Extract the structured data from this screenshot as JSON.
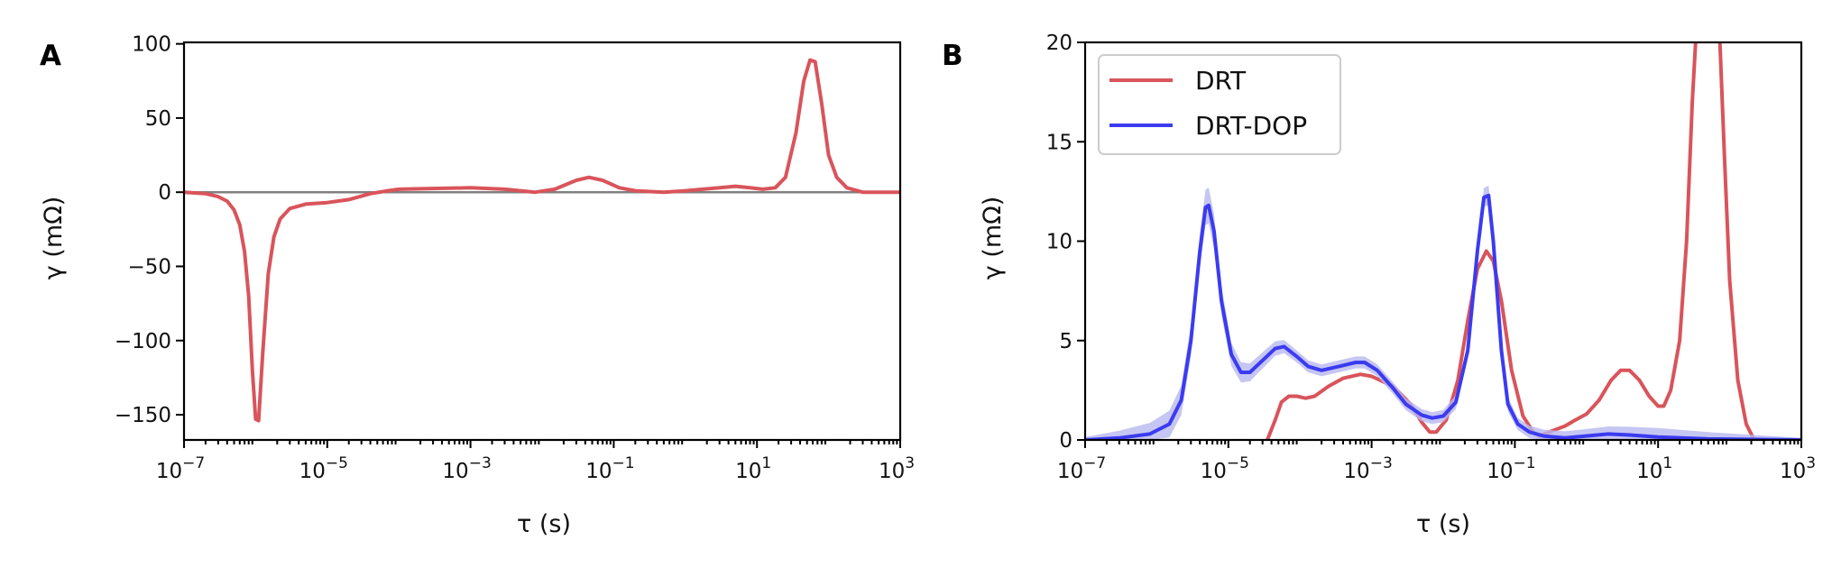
{
  "chart_data": [
    {
      "panel": "A",
      "type": "line",
      "xlabel": "τ (s)",
      "ylabel": "γ (mΩ)",
      "xscale": "log",
      "xlim": [
        1e-07,
        1000
      ],
      "ylim": [
        -167,
        101
      ],
      "xticks": [
        {
          "value": 1e-07,
          "base": "10",
          "exp": "−7"
        },
        {
          "value": 1e-05,
          "base": "10",
          "exp": "−5"
        },
        {
          "value": 0.001,
          "base": "10",
          "exp": "−3"
        },
        {
          "value": 0.1,
          "base": "10",
          "exp": "−1"
        },
        {
          "value": 10,
          "base": "10",
          "exp": "1"
        },
        {
          "value": 1000,
          "base": "10",
          "exp": "3"
        }
      ],
      "yticks": [
        {
          "value": 100,
          "label": "100"
        },
        {
          "value": 50,
          "label": "50"
        },
        {
          "value": 0,
          "label": "0"
        },
        {
          "value": -50,
          "label": "−50"
        },
        {
          "value": -100,
          "label": "−100"
        },
        {
          "value": -150,
          "label": "−150"
        }
      ],
      "reference_line": {
        "y": 0,
        "color": "#808080"
      },
      "series": [
        {
          "color": "#d9545b",
          "points": [
            [
              1e-07,
              0
            ],
            [
              2e-07,
              -1
            ],
            [
              3e-07,
              -3
            ],
            [
              4e-07,
              -6
            ],
            [
              5e-07,
              -12
            ],
            [
              6e-07,
              -22
            ],
            [
              7e-07,
              -40
            ],
            [
              8e-07,
              -70
            ],
            [
              9e-07,
              -120
            ],
            [
              1e-06,
              -153
            ],
            [
              1.1e-06,
              -154
            ],
            [
              1.25e-06,
              -110
            ],
            [
              1.5e-06,
              -55
            ],
            [
              1.8e-06,
              -30
            ],
            [
              2.2e-06,
              -18
            ],
            [
              3e-06,
              -11
            ],
            [
              5e-06,
              -8
            ],
            [
              1e-05,
              -7
            ],
            [
              2e-05,
              -5
            ],
            [
              4e-05,
              -1
            ],
            [
              7e-05,
              1
            ],
            [
              0.0001,
              2
            ],
            [
              0.001,
              3
            ],
            [
              0.003,
              2
            ],
            [
              0.008,
              0
            ],
            [
              0.015,
              2
            ],
            [
              0.03,
              8
            ],
            [
              0.045,
              10
            ],
            [
              0.07,
              8
            ],
            [
              0.12,
              3
            ],
            [
              0.2,
              1
            ],
            [
              0.5,
              0
            ],
            [
              1,
              1
            ],
            [
              3,
              3
            ],
            [
              5,
              4
            ],
            [
              8,
              3
            ],
            [
              12,
              2
            ],
            [
              18,
              3
            ],
            [
              25,
              10
            ],
            [
              35,
              40
            ],
            [
              45,
              75
            ],
            [
              55,
              89
            ],
            [
              65,
              88
            ],
            [
              80,
              60
            ],
            [
              100,
              25
            ],
            [
              130,
              10
            ],
            [
              180,
              3
            ],
            [
              300,
              0
            ],
            [
              1000,
              0
            ]
          ]
        }
      ]
    },
    {
      "panel": "B",
      "type": "line",
      "xlabel": "τ (s)",
      "ylabel": "γ (mΩ)",
      "xscale": "log",
      "xlim": [
        1e-07,
        1000
      ],
      "ylim": [
        0,
        20
      ],
      "xticks": [
        {
          "value": 1e-07,
          "base": "10",
          "exp": "−7"
        },
        {
          "value": 1e-05,
          "base": "10",
          "exp": "−5"
        },
        {
          "value": 0.001,
          "base": "10",
          "exp": "−3"
        },
        {
          "value": 0.1,
          "base": "10",
          "exp": "−1"
        },
        {
          "value": 10,
          "base": "10",
          "exp": "1"
        },
        {
          "value": 1000,
          "base": "10",
          "exp": "3"
        }
      ],
      "yticks": [
        {
          "value": 0,
          "label": "0"
        },
        {
          "value": 5,
          "label": "5"
        },
        {
          "value": 10,
          "label": "10"
        },
        {
          "value": 15,
          "label": "15"
        },
        {
          "value": 20,
          "label": "20"
        }
      ],
      "legend": {
        "position": "top-left"
      },
      "series": [
        {
          "name": "DRT",
          "color": "#d9545b",
          "points": [
            [
              3.5e-05,
              0
            ],
            [
              4.5e-05,
              1
            ],
            [
              5.5e-05,
              1.9
            ],
            [
              7e-05,
              2.2
            ],
            [
              9e-05,
              2.2
            ],
            [
              0.00012,
              2.1
            ],
            [
              0.00016,
              2.2
            ],
            [
              0.00025,
              2.7
            ],
            [
              0.0004,
              3.1
            ],
            [
              0.0007,
              3.3
            ],
            [
              0.001,
              3.2
            ],
            [
              0.002,
              2.7
            ],
            [
              0.0035,
              1.8
            ],
            [
              0.005,
              0.9
            ],
            [
              0.0065,
              0.4
            ],
            [
              0.008,
              0.4
            ],
            [
              0.011,
              1
            ],
            [
              0.016,
              3
            ],
            [
              0.022,
              6
            ],
            [
              0.03,
              8.6
            ],
            [
              0.04,
              9.5
            ],
            [
              0.05,
              9
            ],
            [
              0.065,
              7
            ],
            [
              0.09,
              3.5
            ],
            [
              0.13,
              1.2
            ],
            [
              0.18,
              0.4
            ],
            [
              0.22,
              0.2
            ],
            [
              0.3,
              0.4
            ],
            [
              0.5,
              0.7
            ],
            [
              0.7,
              1
            ],
            [
              1,
              1.3
            ],
            [
              1.5,
              2
            ],
            [
              2.2,
              3
            ],
            [
              3,
              3.5
            ],
            [
              4,
              3.5
            ],
            [
              5.5,
              3
            ],
            [
              7.5,
              2.2
            ],
            [
              10,
              1.7
            ],
            [
              12,
              1.7
            ],
            [
              15,
              2.5
            ],
            [
              20,
              5
            ],
            [
              25,
              10
            ],
            [
              30,
              17
            ],
            [
              34,
              20.5
            ]
          ],
          "points_2": [
            [
              72,
              20.5
            ],
            [
              85,
              14
            ],
            [
              100,
              8
            ],
            [
              130,
              3
            ],
            [
              170,
              0.8
            ],
            [
              220,
              0
            ]
          ]
        },
        {
          "name": "DRT-DOP",
          "color": "#3b3bf0",
          "band_color": "#b8b8f0",
          "band_spread": [
            [
              1e-07,
              0.15
            ],
            [
              1e-06,
              0.6
            ],
            [
              3e-06,
              0.8
            ],
            [
              4.5e-06,
              0.9
            ],
            [
              6e-06,
              0.9
            ],
            [
              1e-05,
              0.6
            ],
            [
              2e-05,
              0.45
            ],
            [
              8e-05,
              0.3
            ],
            [
              0.001,
              0.3
            ],
            [
              0.01,
              0.3
            ],
            [
              0.045,
              0.5
            ],
            [
              0.1,
              0.3
            ],
            [
              1,
              0.35
            ],
            [
              10,
              0.45
            ],
            [
              100,
              0.3
            ],
            [
              1000,
              0.1
            ]
          ],
          "points": [
            [
              1e-07,
              0
            ],
            [
              3e-07,
              0.1
            ],
            [
              8e-07,
              0.3
            ],
            [
              1.5e-06,
              0.8
            ],
            [
              2.2e-06,
              2
            ],
            [
              3e-06,
              5
            ],
            [
              4e-06,
              9.5
            ],
            [
              4.8e-06,
              11.7
            ],
            [
              5.3e-06,
              11.8
            ],
            [
              6.3e-06,
              10.5
            ],
            [
              8e-06,
              7
            ],
            [
              1.1e-05,
              4.3
            ],
            [
              1.5e-05,
              3.4
            ],
            [
              2e-05,
              3.4
            ],
            [
              3e-05,
              4
            ],
            [
              4.5e-05,
              4.6
            ],
            [
              6e-05,
              4.7
            ],
            [
              9e-05,
              4.2
            ],
            [
              0.00013,
              3.7
            ],
            [
              0.0002,
              3.5
            ],
            [
              0.00035,
              3.7
            ],
            [
              0.0006,
              3.9
            ],
            [
              0.0008,
              3.9
            ],
            [
              0.0012,
              3.5
            ],
            [
              0.002,
              2.6
            ],
            [
              0.003,
              1.8
            ],
            [
              0.005,
              1.25
            ],
            [
              0.007,
              1.1
            ],
            [
              0.01,
              1.2
            ],
            [
              0.015,
              1.9
            ],
            [
              0.022,
              4.5
            ],
            [
              0.03,
              9.5
            ],
            [
              0.037,
              12.2
            ],
            [
              0.043,
              12.3
            ],
            [
              0.05,
              10
            ],
            [
              0.065,
              4.5
            ],
            [
              0.08,
              1.8
            ],
            [
              0.11,
              0.8
            ],
            [
              0.16,
              0.4
            ],
            [
              0.25,
              0.2
            ],
            [
              0.5,
              0.1
            ],
            [
              1,
              0.2
            ],
            [
              2,
              0.3
            ],
            [
              4,
              0.25
            ],
            [
              10,
              0.15
            ],
            [
              50,
              0.05
            ],
            [
              1000,
              0
            ]
          ]
        }
      ]
    }
  ]
}
